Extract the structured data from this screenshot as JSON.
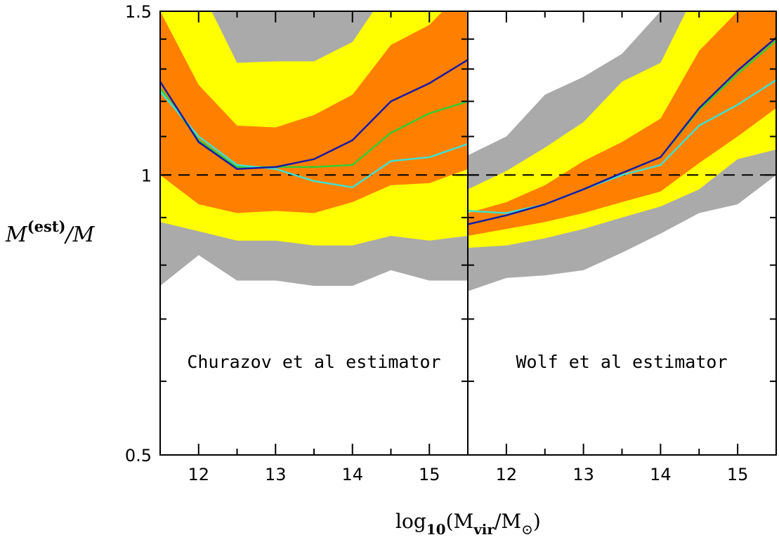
{
  "chart_data": [
    {
      "type": "area",
      "panel_label": "Churazov et al estimator",
      "xlim": [
        11.5,
        15.5
      ],
      "ylim": [
        0.5,
        1.5
      ],
      "y_scale": "log",
      "x_ticks": [
        12,
        13,
        14,
        15
      ],
      "y_ticks": [
        0.5,
        1,
        1.5
      ],
      "y_tick_labels": [
        "0.5",
        "1",
        "1.5"
      ],
      "reference_line": 1,
      "x": [
        11.5,
        12,
        12.5,
        13,
        13.5,
        14,
        14.5,
        15,
        15.5
      ],
      "bands": [
        {
          "color": "#aaaaaa",
          "lower": [
            0.76,
            0.82,
            0.77,
            0.77,
            0.76,
            0.76,
            0.79,
            0.77,
            0.77
          ],
          "upper": [
            1.5,
            1.6,
            1.6,
            1.6,
            1.6,
            1.6,
            1.6,
            1.6,
            1.6
          ]
        },
        {
          "color": "#ffff00",
          "lower": [
            0.89,
            0.87,
            0.85,
            0.85,
            0.84,
            0.84,
            0.86,
            0.85,
            0.86
          ],
          "upper": [
            1.5,
            1.6,
            1.32,
            1.325,
            1.325,
            1.39,
            1.6,
            1.6,
            1.6
          ]
        },
        {
          "color": "#ff8000",
          "lower": [
            1.0,
            0.93,
            0.91,
            0.915,
            0.91,
            0.935,
            0.975,
            0.98,
            1.015
          ],
          "upper": [
            1.5,
            1.25,
            1.13,
            1.125,
            1.16,
            1.22,
            1.38,
            1.45,
            1.6
          ]
        }
      ],
      "series": [
        {
          "color": "#32cd32",
          "values": [
            1.24,
            1.09,
            1.02,
            1.02,
            1.02,
            1.025,
            1.11,
            1.165,
            1.2
          ]
        },
        {
          "color": "#40e0d0",
          "values": [
            1.23,
            1.1,
            1.025,
            1.015,
            0.985,
            0.97,
            1.035,
            1.045,
            1.08
          ]
        },
        {
          "color": "#1a1aa6",
          "values": [
            1.26,
            1.085,
            1.015,
            1.02,
            1.04,
            1.09,
            1.2,
            1.255,
            1.33
          ]
        }
      ]
    },
    {
      "type": "area",
      "panel_label": "Wolf et al estimator",
      "xlim": [
        11.5,
        15.5
      ],
      "ylim": [
        0.5,
        1.5
      ],
      "y_scale": "log",
      "x_ticks": [
        12,
        13,
        14,
        15
      ],
      "reference_line": 1,
      "x": [
        11.5,
        12,
        12.5,
        13,
        13.5,
        14,
        14.5,
        15,
        15.5
      ],
      "bands": [
        {
          "color": "#aaaaaa",
          "lower": [
            0.75,
            0.775,
            0.78,
            0.79,
            0.825,
            0.865,
            0.91,
            0.93,
            1.0
          ],
          "upper": [
            1.05,
            1.1,
            1.22,
            1.275,
            1.35,
            1.5,
            1.6,
            1.6,
            1.6
          ]
        },
        {
          "color": "#ffff00",
          "lower": [
            0.835,
            0.84,
            0.855,
            0.875,
            0.9,
            0.925,
            0.965,
            1.04,
            1.065
          ],
          "upper": [
            0.965,
            1.01,
            1.07,
            1.14,
            1.26,
            1.32,
            1.6,
            1.6,
            1.6
          ]
        },
        {
          "color": "#ff8000",
          "lower": [
            0.86,
            0.875,
            0.89,
            0.91,
            0.935,
            0.96,
            1.03,
            1.1,
            1.18
          ],
          "upper": [
            0.91,
            0.935,
            0.975,
            1.035,
            1.085,
            1.15,
            1.36,
            1.5,
            1.6
          ]
        }
      ],
      "series": [
        {
          "color": "#32cd32",
          "values": [
            0.885,
            0.905,
            0.93,
            0.965,
            1.005,
            1.045,
            1.175,
            1.285,
            1.395
          ]
        },
        {
          "color": "#40e0d0",
          "values": [
            0.915,
            0.91,
            0.93,
            0.965,
            1.0,
            1.025,
            1.13,
            1.19,
            1.265
          ]
        },
        {
          "color": "#1a1aa6",
          "values": [
            0.885,
            0.905,
            0.93,
            0.965,
            1.005,
            1.045,
            1.18,
            1.295,
            1.405
          ]
        }
      ]
    }
  ],
  "axes": {
    "ylabel_main": "M",
    "ylabel_sup": "(est)",
    "ylabel_rest": "/M",
    "xlabel_main": "log",
    "xlabel_sub1": "10",
    "xlabel_mid": "(M",
    "xlabel_sub2": "vir",
    "xlabel_mid2": "/M",
    "xlabel_sub3": "⊙",
    "xlabel_end": ")"
  }
}
